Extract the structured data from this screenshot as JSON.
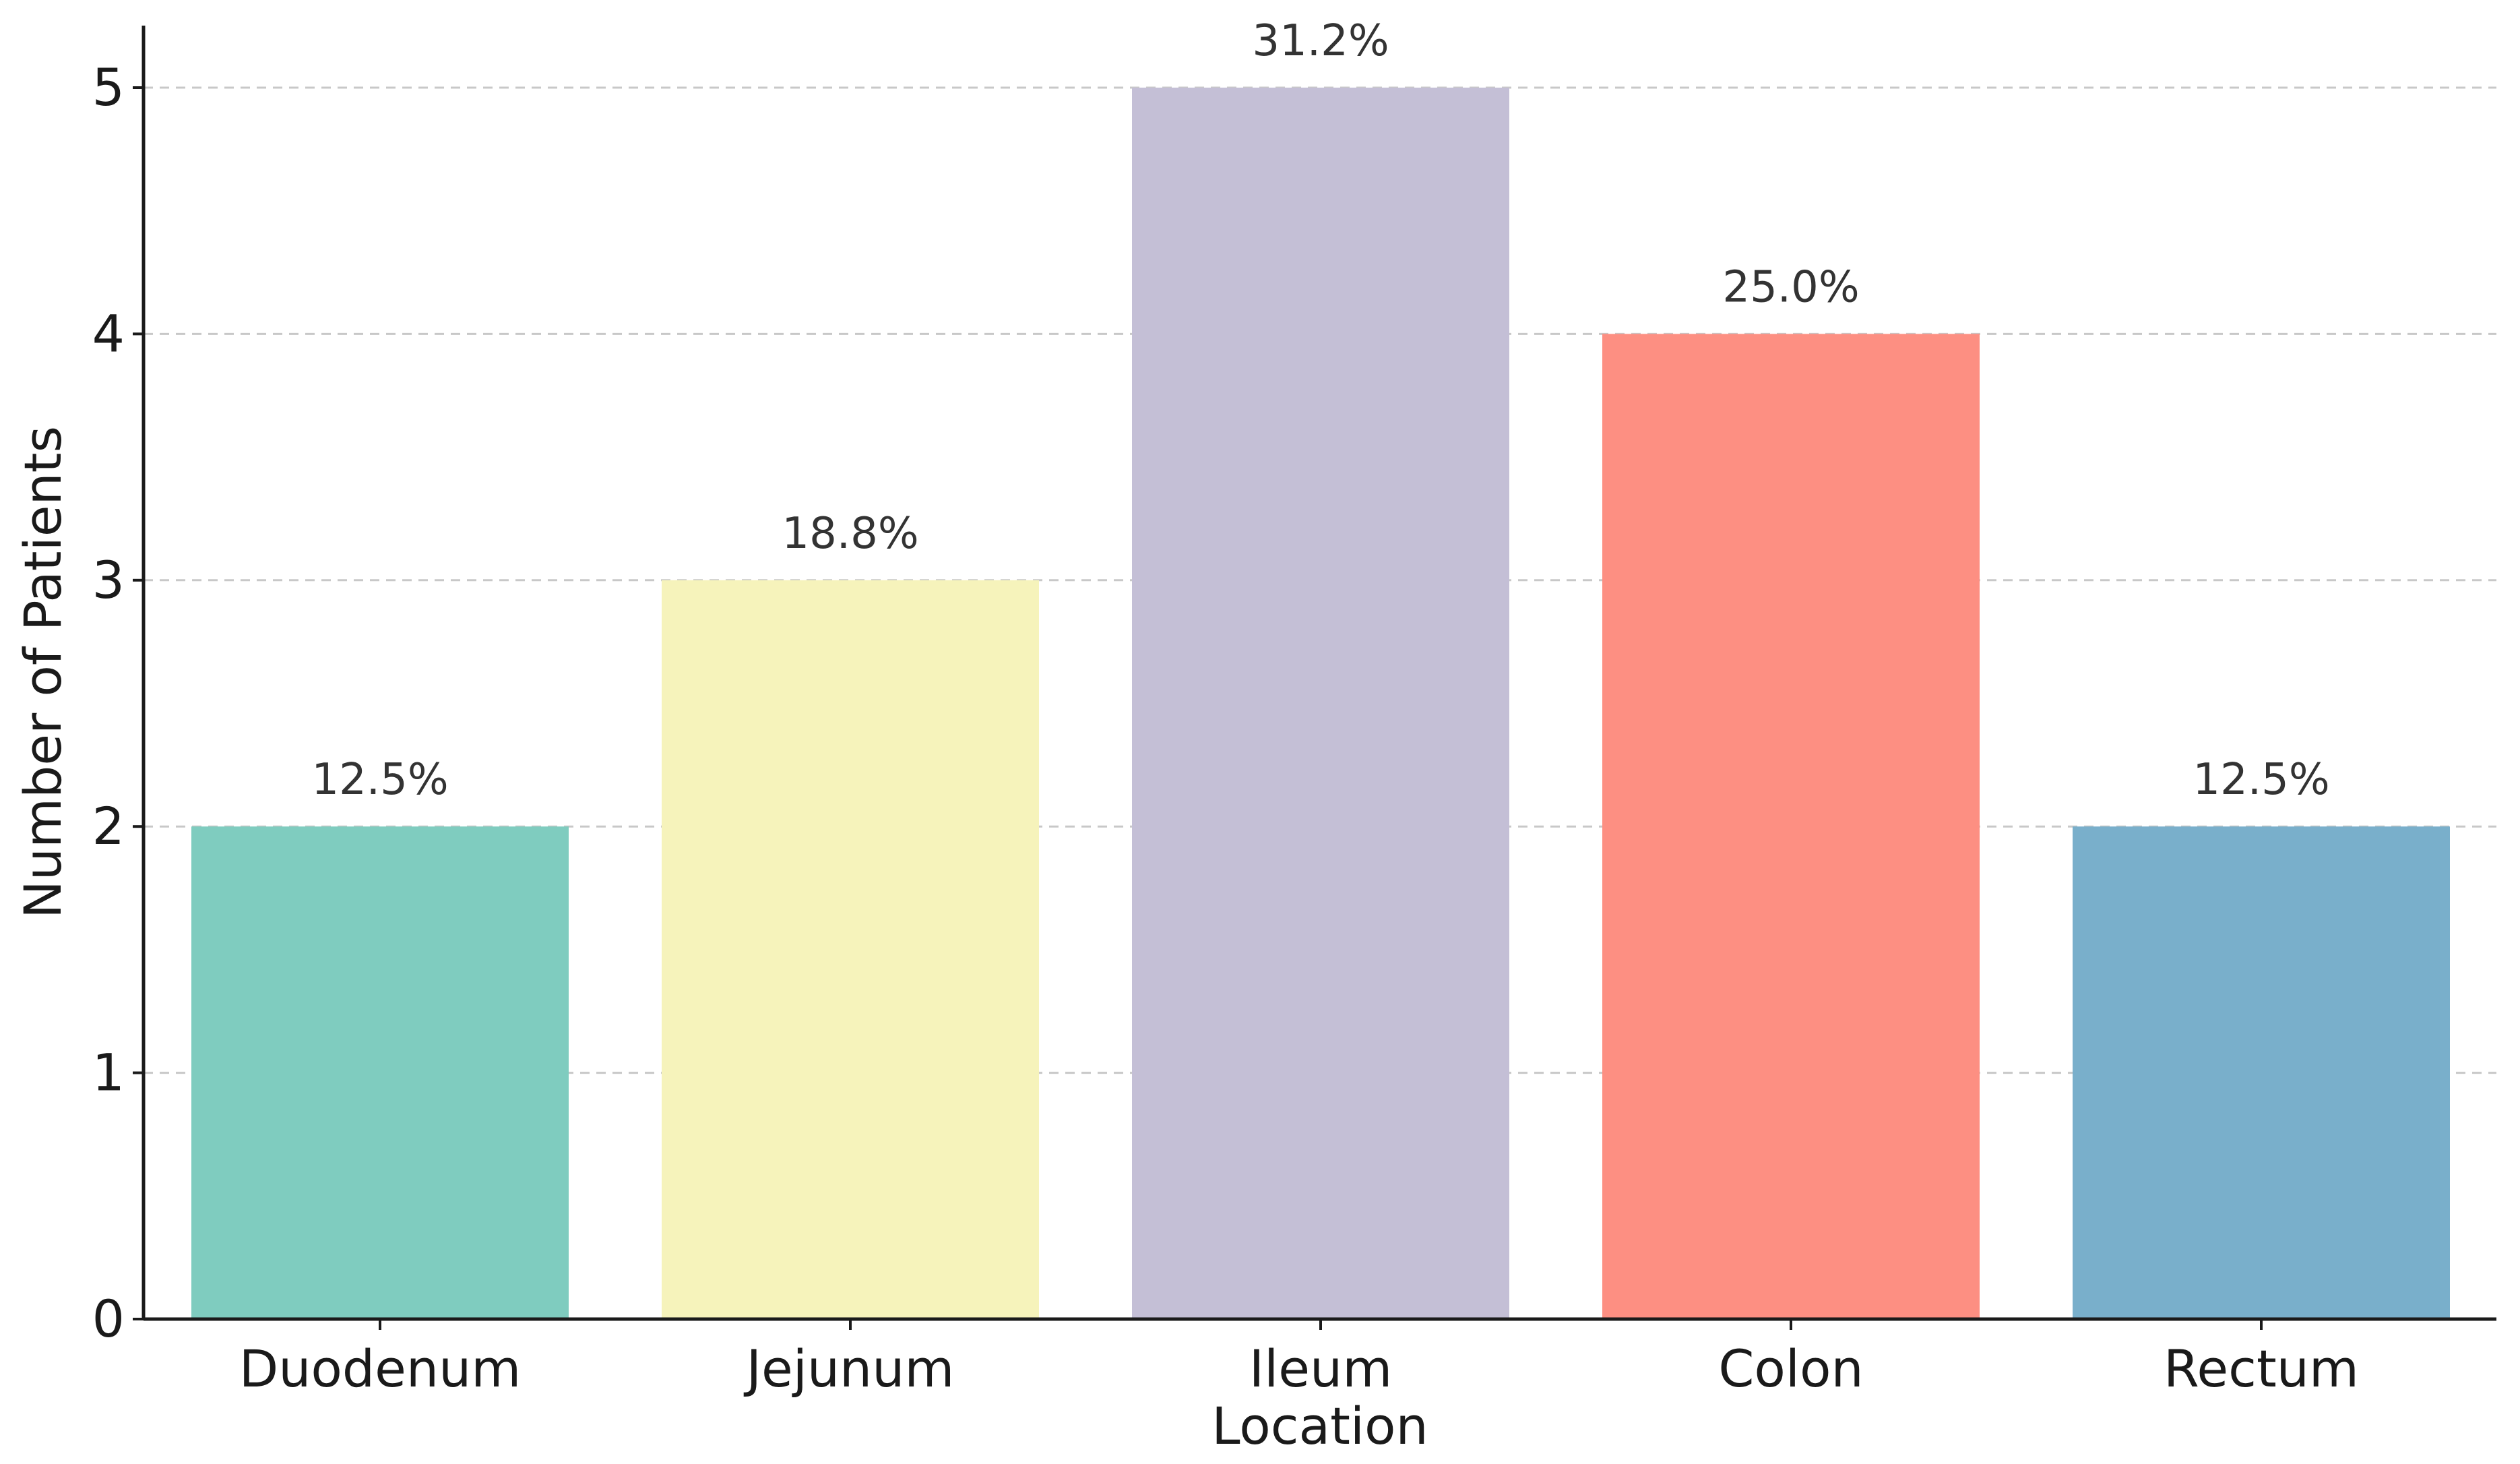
{
  "chart_data": {
    "type": "bar",
    "categories": [
      "Duodenum",
      "Jejunum",
      "Ileum",
      "Colon",
      "Rectum"
    ],
    "values": [
      2,
      3,
      5,
      4,
      2
    ],
    "data_labels": [
      "12.5%",
      "18.8%",
      "31.2%",
      "25.0%",
      "12.5%"
    ],
    "colors": [
      "#7fccbf",
      "#f6f3bb",
      "#c4bfd6",
      "#fd8f82",
      "#79afcb"
    ],
    "xlabel": "Location",
    "ylabel": "Number of Patients",
    "ylim": [
      0,
      5
    ],
    "yticks": [
      "0",
      "1",
      "2",
      "3",
      "4",
      "5"
    ],
    "grid": "horizontal dashed",
    "legend": "none"
  }
}
